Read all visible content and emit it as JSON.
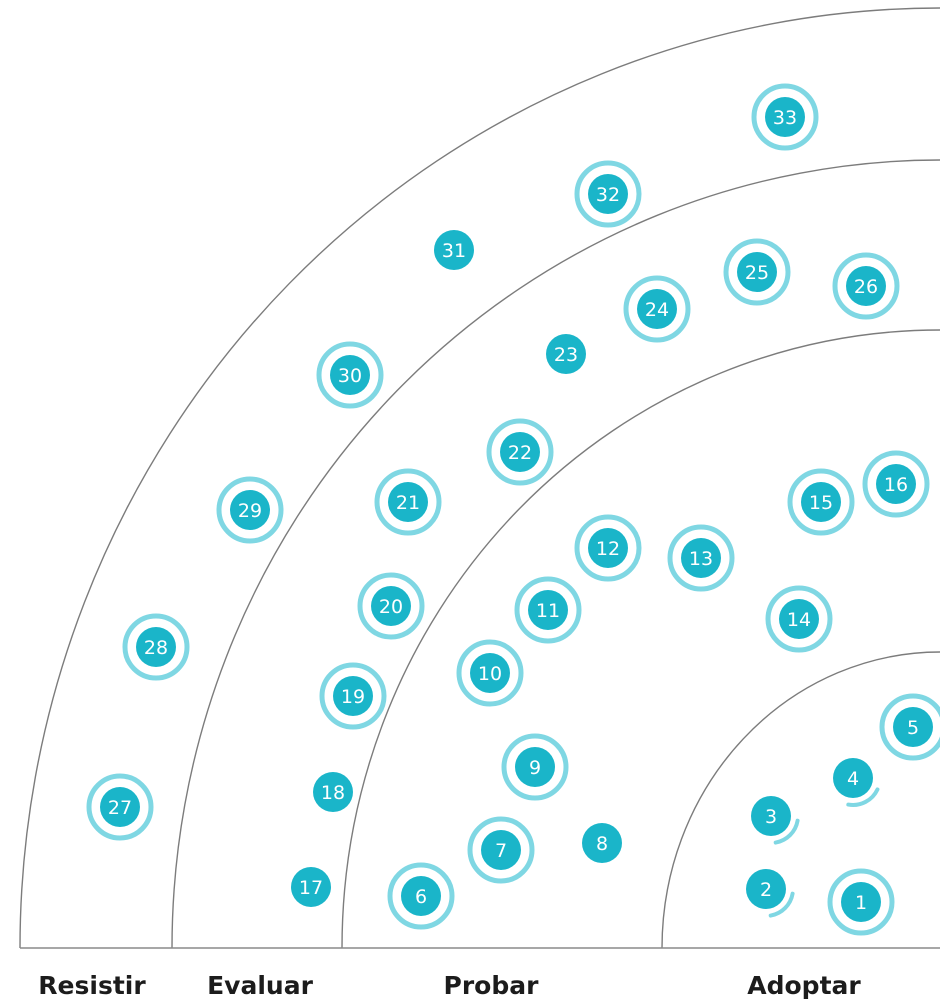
{
  "radar": {
    "rings": [
      {
        "id": "resistir",
        "label": "Resistir"
      },
      {
        "id": "evaluar",
        "label": "Evaluar"
      },
      {
        "id": "probar",
        "label": "Probar"
      },
      {
        "id": "adoptar",
        "label": "Adoptar"
      }
    ],
    "colors": {
      "blip": "#1ab5c9",
      "halo": "#7fd7e3",
      "ring_line": "#7c7c7c",
      "label_text": "#1c1c1c"
    },
    "blips": [
      {
        "label": "1",
        "ring": "Adoptar",
        "marker": "full-ring"
      },
      {
        "label": "2",
        "ring": "Adoptar",
        "marker": "partial-ring"
      },
      {
        "label": "3",
        "ring": "Adoptar",
        "marker": "partial-ring"
      },
      {
        "label": "4",
        "ring": "Adoptar",
        "marker": "partial-ring"
      },
      {
        "label": "5",
        "ring": "Adoptar",
        "marker": "full-ring"
      },
      {
        "label": "6",
        "ring": "Probar",
        "marker": "full-ring"
      },
      {
        "label": "7",
        "ring": "Probar",
        "marker": "full-ring"
      },
      {
        "label": "8",
        "ring": "Probar",
        "marker": "none"
      },
      {
        "label": "9",
        "ring": "Probar",
        "marker": "full-ring"
      },
      {
        "label": "10",
        "ring": "Probar",
        "marker": "full-ring"
      },
      {
        "label": "11",
        "ring": "Probar",
        "marker": "full-ring"
      },
      {
        "label": "12",
        "ring": "Probar",
        "marker": "full-ring"
      },
      {
        "label": "13",
        "ring": "Probar",
        "marker": "full-ring"
      },
      {
        "label": "14",
        "ring": "Probar",
        "marker": "full-ring"
      },
      {
        "label": "15",
        "ring": "Probar",
        "marker": "full-ring"
      },
      {
        "label": "16",
        "ring": "Probar",
        "marker": "full-ring"
      },
      {
        "label": "17",
        "ring": "Evaluar",
        "marker": "none"
      },
      {
        "label": "18",
        "ring": "Evaluar",
        "marker": "none"
      },
      {
        "label": "19",
        "ring": "Evaluar",
        "marker": "full-ring"
      },
      {
        "label": "20",
        "ring": "Evaluar",
        "marker": "full-ring"
      },
      {
        "label": "21",
        "ring": "Evaluar",
        "marker": "full-ring"
      },
      {
        "label": "22",
        "ring": "Evaluar",
        "marker": "full-ring"
      },
      {
        "label": "23",
        "ring": "Evaluar",
        "marker": "none"
      },
      {
        "label": "24",
        "ring": "Evaluar",
        "marker": "full-ring"
      },
      {
        "label": "25",
        "ring": "Evaluar",
        "marker": "full-ring"
      },
      {
        "label": "26",
        "ring": "Evaluar",
        "marker": "full-ring"
      },
      {
        "label": "27",
        "ring": "Resistir",
        "marker": "full-ring"
      },
      {
        "label": "28",
        "ring": "Resistir",
        "marker": "full-ring"
      },
      {
        "label": "29",
        "ring": "Resistir",
        "marker": "full-ring"
      },
      {
        "label": "30",
        "ring": "Resistir",
        "marker": "full-ring"
      },
      {
        "label": "31",
        "ring": "Resistir",
        "marker": "none"
      },
      {
        "label": "32",
        "ring": "Resistir",
        "marker": "full-ring"
      },
      {
        "label": "33",
        "ring": "Resistir",
        "marker": "full-ring"
      }
    ]
  }
}
